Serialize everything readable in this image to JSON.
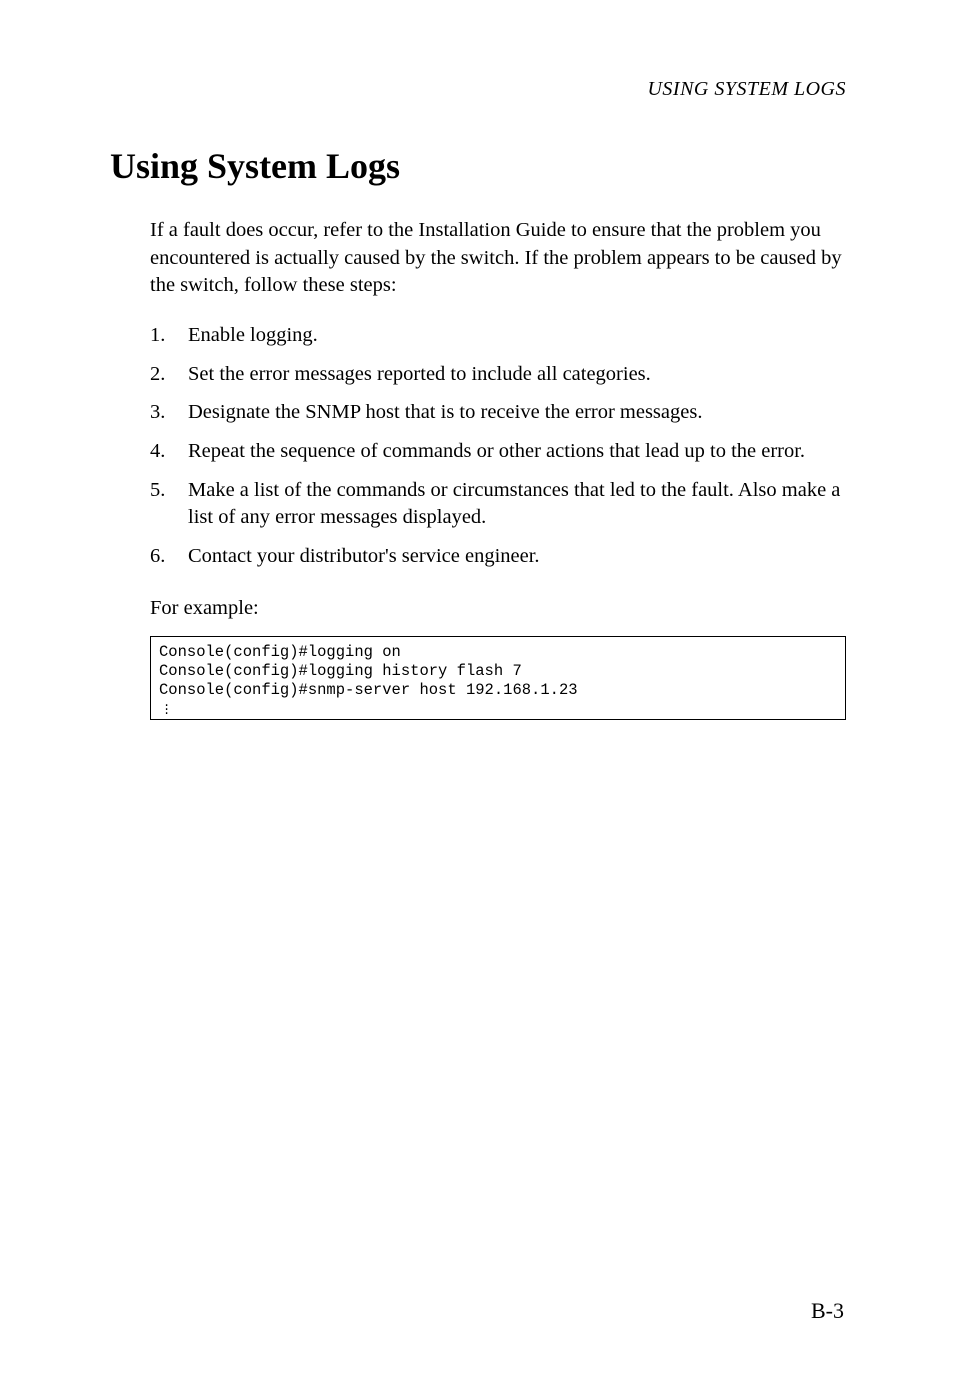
{
  "running_header": "USING SYSTEM LOGS",
  "heading": "Using System Logs",
  "intro": "If a fault does occur, refer to the Installation Guide to ensure that the problem you encountered is actually caused by the switch. If the problem appears to be caused by the switch, follow these steps:",
  "steps": [
    "Enable logging.",
    "Set the error messages reported to include all categories.",
    "Designate the SNMP host that is to receive the error messages.",
    "Repeat the sequence of commands or other actions that lead up to the error.",
    "Make a list of the commands or circumstances that led to the fault. Also make a list of any error messages displayed.",
    "Contact your distributor's service engineer."
  ],
  "for_example_label": "For example:",
  "code_lines": [
    "Console(config)#logging on",
    "Console(config)#logging history flash 7",
    "Console(config)#snmp-server host 192.168.1.23"
  ],
  "page_number": "B-3",
  "colors": {
    "background": "#ffffff",
    "text": "#000000",
    "border": "#000000"
  },
  "typography": {
    "body_font": "Garamond",
    "code_font": "Courier New",
    "heading_size_pt": 27,
    "body_size_pt": 15,
    "code_size_pt": 11
  }
}
